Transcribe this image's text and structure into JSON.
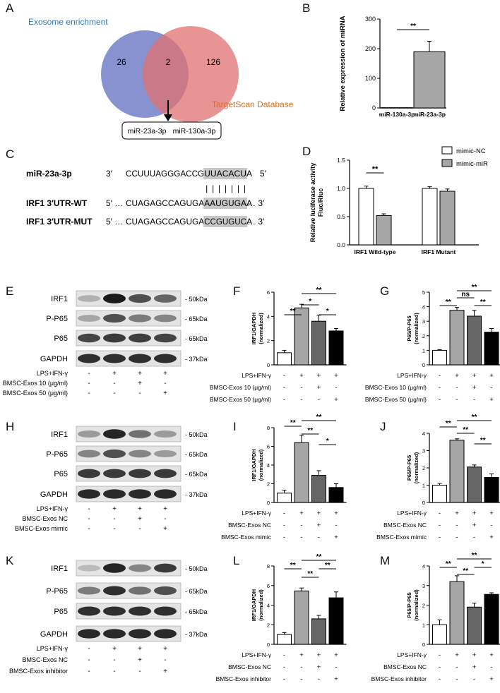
{
  "panels": {
    "A": {
      "label": "A",
      "venn": {
        "left_label": "Exosome enrichment",
        "right_label": "TargetScan Database",
        "left_only": "26",
        "intersection": "2",
        "right_only": "126",
        "left_color": "#7b86cc",
        "right_color": "#e07070",
        "result_items": [
          "miR-23a-3p",
          "miR-130a-3p"
        ]
      }
    },
    "B": {
      "label": "B"
    },
    "C": {
      "label": "C",
      "rows": [
        {
          "name": "miR-23a-3p",
          "p5": "3′",
          "pre": "CCUUUAGGGACCG",
          "hl": "UUACACU",
          "post": "A",
          "p3": "5′"
        },
        {
          "name": "IRF1 3′UTR-WT",
          "p5": "5′ …",
          "pre": "CUAGAGCCAGUGA",
          "hl": "AAUGUGA",
          "post": "A",
          "p3": "… 3′"
        },
        {
          "name": "IRF1 3′UTR-MUT",
          "p5": "5′ …",
          "pre": "CUAGAGCCAGUGA",
          "hl": "CCGUGUC",
          "post": "A",
          "p3": "… 3′"
        }
      ],
      "pairing_bars": "| | | | | | |"
    },
    "D": {
      "label": "D"
    },
    "E": {
      "label": "E"
    },
    "F": {
      "label": "F"
    },
    "G": {
      "label": "G"
    },
    "H": {
      "label": "H"
    },
    "I": {
      "label": "I"
    },
    "J": {
      "label": "J"
    },
    "K": {
      "label": "K"
    },
    "L": {
      "label": "L"
    },
    "M": {
      "label": "M"
    }
  },
  "blots": {
    "E": {
      "rows": [
        {
          "name": "IRF1",
          "kda": "- 50kDa",
          "int": [
            0.25,
            0.95,
            0.7,
            0.6
          ]
        },
        {
          "name": "P-P65",
          "kda": "- 65kDa",
          "int": [
            0.3,
            0.7,
            0.5,
            0.45
          ]
        },
        {
          "name": "P65",
          "kda": "- 65kDa",
          "int": [
            0.75,
            0.8,
            0.78,
            0.76
          ]
        },
        {
          "name": "GAPDH",
          "kda": "- 37kDa",
          "int": [
            0.85,
            0.85,
            0.85,
            0.85
          ]
        }
      ],
      "conditions": [
        {
          "label": "LPS+IFN-γ",
          "signs": [
            "-",
            "+",
            "+",
            "+"
          ]
        },
        {
          "label": "BMSC-Exos 10 (μg/ml)",
          "signs": [
            "-",
            "-",
            "+",
            "-"
          ]
        },
        {
          "label": "BMSC-Exos 50 (μg/ml)",
          "signs": [
            "-",
            "-",
            "-",
            "+"
          ]
        }
      ]
    },
    "H": {
      "rows": [
        {
          "name": "IRF1",
          "kda": "- 50kDa",
          "int": [
            0.35,
            0.9,
            0.55,
            0.35
          ]
        },
        {
          "name": "P-P65",
          "kda": "- 65kDa",
          "int": [
            0.45,
            0.7,
            0.45,
            0.35
          ]
        },
        {
          "name": "P65",
          "kda": "- 65kDa",
          "int": [
            0.8,
            0.8,
            0.8,
            0.8
          ]
        },
        {
          "name": "GAPDH",
          "kda": "- 37kDa",
          "int": [
            0.88,
            0.88,
            0.88,
            0.88
          ]
        }
      ],
      "conditions": [
        {
          "label": "LPS+IFN-γ",
          "signs": [
            "-",
            "+",
            "+",
            "+"
          ]
        },
        {
          "label": "BMSC-Exos NC",
          "signs": [
            "-",
            "-",
            "+",
            "-"
          ]
        },
        {
          "label": "BMSC-Exos mimic",
          "signs": [
            "-",
            "-",
            "-",
            "+"
          ]
        }
      ]
    },
    "K": {
      "rows": [
        {
          "name": "IRF1",
          "kda": "- 50kDa",
          "int": [
            0.2,
            0.9,
            0.45,
            0.8
          ]
        },
        {
          "name": "P-P65",
          "kda": "- 65kDa",
          "int": [
            0.5,
            0.85,
            0.55,
            0.7
          ]
        },
        {
          "name": "P65",
          "kda": "- 65kDa",
          "int": [
            0.85,
            0.85,
            0.85,
            0.85
          ]
        },
        {
          "name": "GAPDH",
          "kda": "- 37kDa",
          "int": [
            0.88,
            0.88,
            0.88,
            0.88
          ]
        }
      ],
      "conditions": [
        {
          "label": "LPS+IFN-γ",
          "signs": [
            "-",
            "+",
            "+",
            "+"
          ]
        },
        {
          "label": "BMSC-Exos NC",
          "signs": [
            "-",
            "-",
            "+",
            "-"
          ]
        },
        {
          "label": "BMSC-Exos inhibitor",
          "signs": [
            "-",
            "-",
            "-",
            "+"
          ]
        }
      ]
    }
  },
  "chart_data": [
    {
      "id": "B",
      "type": "bar",
      "categories": [
        "miR-130a-3p",
        "miR-23a-3p"
      ],
      "values": [
        1,
        190
      ],
      "errors": [
        0,
        35
      ],
      "ylabel": "Relative expression of miRNA",
      "ylim": [
        0,
        300
      ],
      "yticks": [
        0,
        100,
        200,
        300
      ],
      "fills": [
        "#ffffff",
        "#a6a6a6"
      ],
      "sig": [
        {
          "from": 0,
          "to": 1,
          "text": "**"
        }
      ]
    },
    {
      "id": "D",
      "type": "bar",
      "groups": [
        "IRF1 Wild-type",
        "IRF1 Mutant"
      ],
      "series": [
        {
          "name": "mimic-NC",
          "values": [
            1.0,
            1.0
          ],
          "errors": [
            0.04,
            0.03
          ],
          "fill": "#ffffff"
        },
        {
          "name": "mimic-miR",
          "values": [
            0.52,
            0.95
          ],
          "errors": [
            0.03,
            0.04
          ],
          "fill": "#a6a6a6"
        }
      ],
      "ylabel": "Relative luciferase activity Fluc/Rluc",
      "ylim": [
        0,
        1.5
      ],
      "yticks": [
        0.0,
        0.5,
        1.0,
        1.5
      ],
      "legend": "top-right",
      "sig": [
        {
          "text": "**"
        }
      ]
    },
    {
      "id": "F",
      "type": "bar",
      "values": [
        1.0,
        4.7,
        3.6,
        2.8
      ],
      "errors": [
        0.2,
        0.3,
        0.5,
        0.2
      ],
      "ylabel": "IRF1/GAPDH (normalized)",
      "ylim": [
        0,
        6
      ],
      "yticks": [
        0,
        2,
        4,
        6
      ],
      "sig": [
        {
          "from": 0,
          "to": 1,
          "text": "**"
        },
        {
          "from": 1,
          "to": 2,
          "text": "*"
        },
        {
          "from": 2,
          "to": 3,
          "text": "*"
        },
        {
          "from": 1,
          "to": 3,
          "text": "**"
        }
      ],
      "conditions": [
        {
          "label": "LPS+IFN-γ",
          "signs": [
            "-",
            "+",
            "+",
            "+"
          ]
        },
        {
          "label": "BMSC-Exos 10 (μg/ml)",
          "signs": [
            "-",
            "-",
            "+",
            "-"
          ]
        },
        {
          "label": "BMSC-Exos 50 (μg/ml)",
          "signs": [
            "-",
            "-",
            "-",
            "+"
          ]
        }
      ]
    },
    {
      "id": "G",
      "type": "bar",
      "values": [
        1.0,
        3.75,
        3.35,
        2.25
      ],
      "errors": [
        0.05,
        0.2,
        0.4,
        0.25
      ],
      "ylabel": "P65/P-P65 (normalized)",
      "ylim": [
        0,
        5
      ],
      "yticks": [
        0,
        1,
        2,
        3,
        4,
        5
      ],
      "sig": [
        {
          "from": 0,
          "to": 1,
          "text": "**"
        },
        {
          "from": 1,
          "to": 2,
          "text": "ns"
        },
        {
          "from": 2,
          "to": 3,
          "text": "**"
        },
        {
          "from": 1,
          "to": 3,
          "text": "**"
        }
      ],
      "conditions": [
        {
          "label": "LPS+IFN-γ",
          "signs": [
            "-",
            "+",
            "+",
            "+"
          ]
        },
        {
          "label": "BMSC-Exos 10 (μg/ml)",
          "signs": [
            "-",
            "-",
            "+",
            "-"
          ]
        },
        {
          "label": "BMSC-Exos 50 (μg/ml)",
          "signs": [
            "-",
            "-",
            "-",
            "+"
          ]
        }
      ]
    },
    {
      "id": "I",
      "type": "bar",
      "values": [
        1.0,
        6.4,
        2.9,
        1.6
      ],
      "errors": [
        0.3,
        0.8,
        0.5,
        0.4
      ],
      "ylabel": "IRF1/GAPDH (normalized)",
      "ylim": [
        0,
        8
      ],
      "yticks": [
        0,
        2,
        4,
        6,
        8
      ],
      "sig": [
        {
          "from": 0,
          "to": 1,
          "text": "**"
        },
        {
          "from": 1,
          "to": 2,
          "text": "**"
        },
        {
          "from": 2,
          "to": 3,
          "text": "*"
        },
        {
          "from": 1,
          "to": 3,
          "text": "**"
        }
      ],
      "conditions": [
        {
          "label": "LPS+IFN-γ",
          "signs": [
            "-",
            "+",
            "+",
            "+"
          ]
        },
        {
          "label": "BMSC-Exos NC",
          "signs": [
            "-",
            "-",
            "+",
            "-"
          ]
        },
        {
          "label": "BMSC-Exos mimic",
          "signs": [
            "-",
            "-",
            "-",
            "+"
          ]
        }
      ]
    },
    {
      "id": "J",
      "type": "bar",
      "values": [
        1.0,
        3.6,
        2.05,
        1.45
      ],
      "errors": [
        0.1,
        0.08,
        0.12,
        0.2
      ],
      "ylabel": "P65/P-P65 (normalized)",
      "ylim": [
        0,
        4
      ],
      "yticks": [
        0,
        1,
        2,
        3,
        4
      ],
      "sig": [
        {
          "from": 0,
          "to": 1,
          "text": "**"
        },
        {
          "from": 1,
          "to": 2,
          "text": "**"
        },
        {
          "from": 2,
          "to": 3,
          "text": "**"
        },
        {
          "from": 1,
          "to": 3,
          "text": "**"
        }
      ],
      "conditions": [
        {
          "label": "LPS+IFN-γ",
          "signs": [
            "-",
            "+",
            "+",
            "+"
          ]
        },
        {
          "label": "BMSC-Exos NC",
          "signs": [
            "-",
            "-",
            "+",
            "-"
          ]
        },
        {
          "label": "BMSC-Exos mimic",
          "signs": [
            "-",
            "-",
            "-",
            "+"
          ]
        }
      ]
    },
    {
      "id": "L",
      "type": "bar",
      "values": [
        1.0,
        5.45,
        2.6,
        4.75
      ],
      "errors": [
        0.2,
        0.3,
        0.35,
        0.6
      ],
      "ylabel": "IRF1/GAPDH (normalized)",
      "ylim": [
        0,
        8
      ],
      "yticks": [
        0,
        2,
        4,
        6,
        8
      ],
      "sig": [
        {
          "from": 0,
          "to": 1,
          "text": "**"
        },
        {
          "from": 1,
          "to": 2,
          "text": "**"
        },
        {
          "from": 2,
          "to": 3,
          "text": "**"
        },
        {
          "from": 1,
          "to": 3,
          "text": "**"
        }
      ],
      "conditions": [
        {
          "label": "LPS+IFN-γ",
          "signs": [
            "-",
            "+",
            "+",
            "+"
          ]
        },
        {
          "label": "BMSC-Exos NC",
          "signs": [
            "-",
            "-",
            "+",
            "-"
          ]
        },
        {
          "label": "BMSC-Exos inhibitor",
          "signs": [
            "-",
            "-",
            "-",
            "+"
          ]
        }
      ]
    },
    {
      "id": "M",
      "type": "bar",
      "values": [
        1.0,
        3.2,
        1.9,
        2.55
      ],
      "errors": [
        0.25,
        0.3,
        0.2,
        0.08
      ],
      "ylabel": "P65/P-P65 (normalized)",
      "ylim": [
        0,
        4
      ],
      "yticks": [
        0,
        1,
        2,
        3,
        4
      ],
      "sig": [
        {
          "from": 0,
          "to": 1,
          "text": "**"
        },
        {
          "from": 1,
          "to": 2,
          "text": "**"
        },
        {
          "from": 2,
          "to": 3,
          "text": "*"
        },
        {
          "from": 1,
          "to": 3,
          "text": "**"
        }
      ],
      "conditions": [
        {
          "label": "LPS+IFN-γ",
          "signs": [
            "-",
            "+",
            "+",
            "+"
          ]
        },
        {
          "label": "BMSC-Exos NC",
          "signs": [
            "-",
            "-",
            "+",
            "-"
          ]
        },
        {
          "label": "BMSC-Exos inhibitor",
          "signs": [
            "-",
            "-",
            "-",
            "+"
          ]
        }
      ]
    }
  ]
}
